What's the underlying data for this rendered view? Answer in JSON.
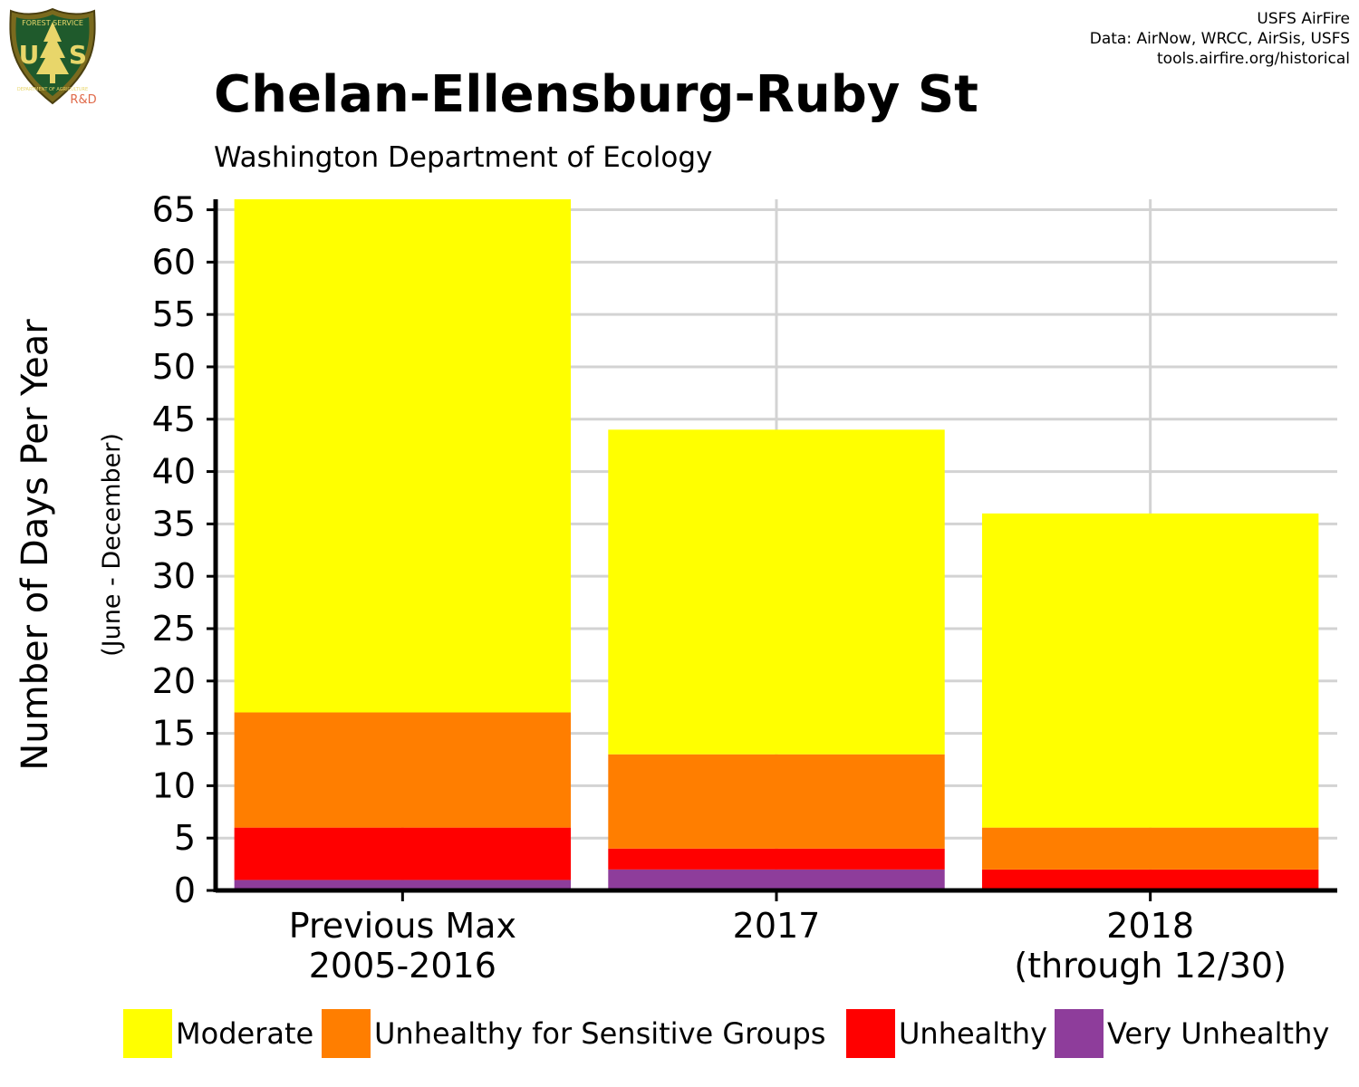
{
  "logo": {
    "icon": "usfs-shield-icon",
    "lettering_top": "FOREST SERVICE",
    "lettering_main_left": "U",
    "lettering_main_right": "S",
    "lettering_bottom": "DEPARTMENT OF AGRICULTURE",
    "badge": "R&D"
  },
  "credits": {
    "line1": "USFS AirFire",
    "line2": "Data: AirNow, WRCC, AirSis, USFS",
    "line3": "tools.airfire.org/historical"
  },
  "chart_data": {
    "type": "bar",
    "stacked": true,
    "title": "Chelan-Ellensburg-Ruby St",
    "subtitle": "Washington Department of Ecology",
    "ylabel": "Number of Days Per Year",
    "ylabel_sub": "(June - December)",
    "xlabel": "",
    "ylim": [
      0,
      66
    ],
    "yticks": [
      0,
      5,
      10,
      15,
      20,
      25,
      30,
      35,
      40,
      45,
      50,
      55,
      60,
      65
    ],
    "grid": true,
    "legend_position": "bottom",
    "categories": [
      [
        "Previous Max",
        "2005-2016"
      ],
      [
        "2017"
      ],
      [
        "2018",
        "(through 12/30)"
      ]
    ],
    "series": [
      {
        "name": "Very Unhealthy",
        "color": "#8E3D9B",
        "values": [
          1,
          2,
          0
        ]
      },
      {
        "name": "Unhealthy",
        "color": "#FF0000",
        "values": [
          5,
          2,
          2
        ]
      },
      {
        "name": "Unhealthy for Sensitive Groups",
        "color": "#FF7E00",
        "values": [
          11,
          9,
          4
        ]
      },
      {
        "name": "Moderate",
        "color": "#FFFF00",
        "values": [
          49,
          31,
          30
        ]
      }
    ],
    "legend_order": [
      "Moderate",
      "Unhealthy for Sensitive Groups",
      "Unhealthy",
      "Very Unhealthy"
    ]
  }
}
